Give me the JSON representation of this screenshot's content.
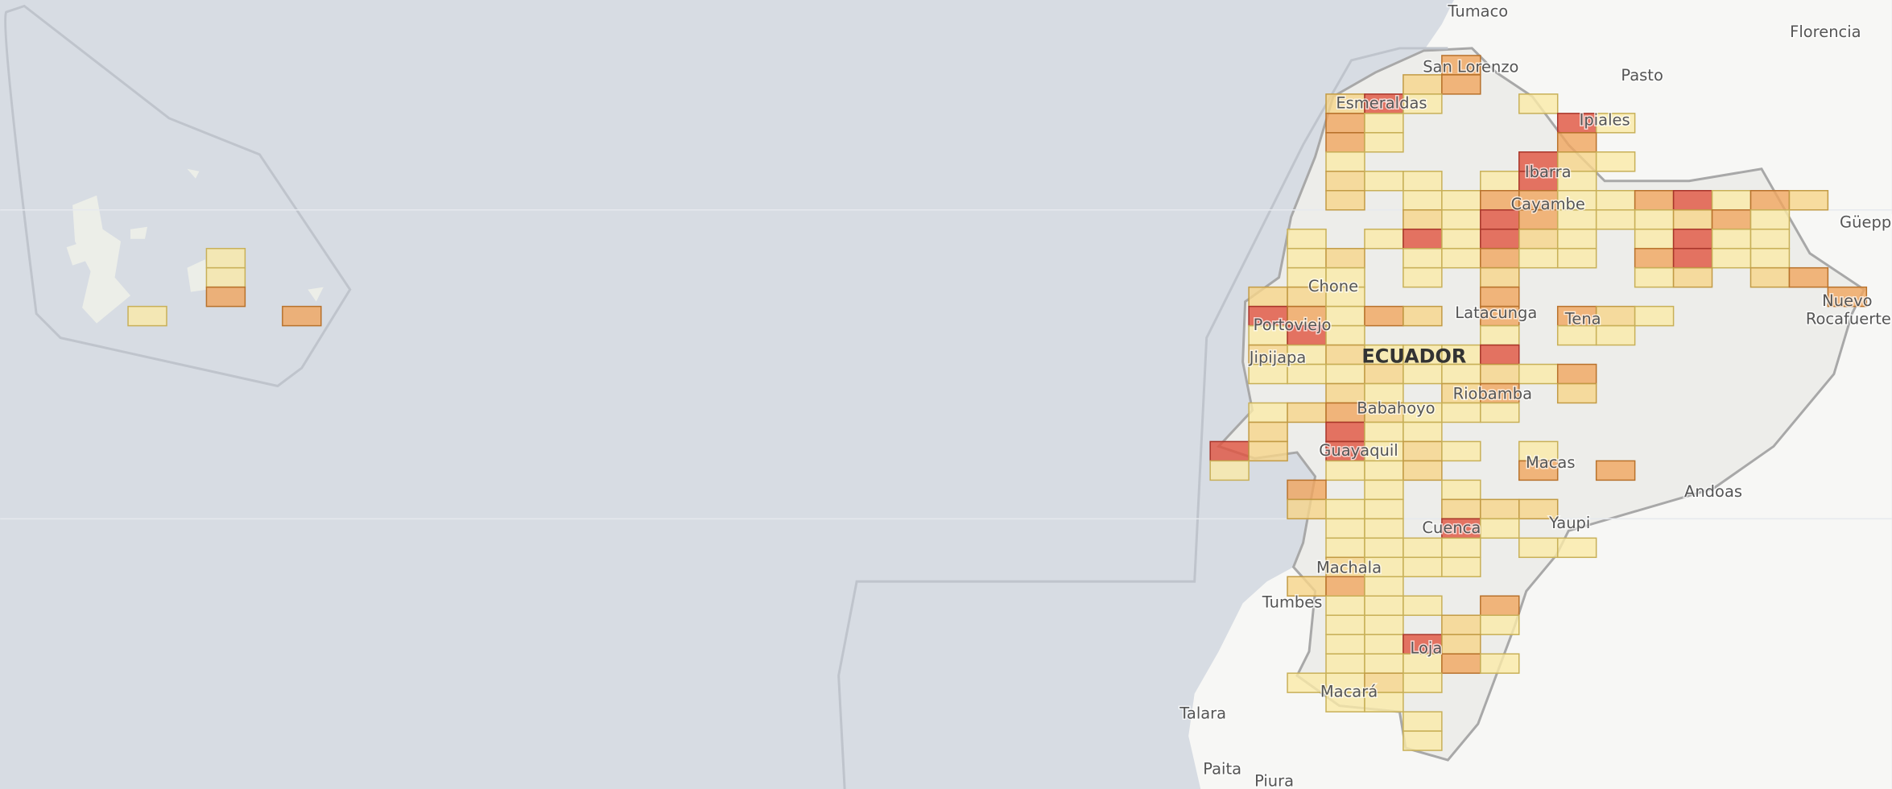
{
  "map": {
    "places": [
      "Tumaco",
      "Florencia",
      "Pasto",
      "San Lorenzo",
      "Esmeraldas",
      "Ipiales",
      "Ibarra",
      "Cayambe",
      "Güeppi",
      "Chone",
      "Portoviejo",
      "Latacunga",
      "Tena",
      "Rocafuerte",
      "Nuevo",
      "Jipijapa",
      "Riobamba",
      "Babahoyo",
      "Guayaquil",
      "Macas",
      "Andoas",
      "Cuenca",
      "Yaupi",
      "Machala",
      "Tumbes",
      "Loja",
      "Macará",
      "Talara",
      "Paita",
      "Piura"
    ],
    "country": "ECUADOR"
  }
}
